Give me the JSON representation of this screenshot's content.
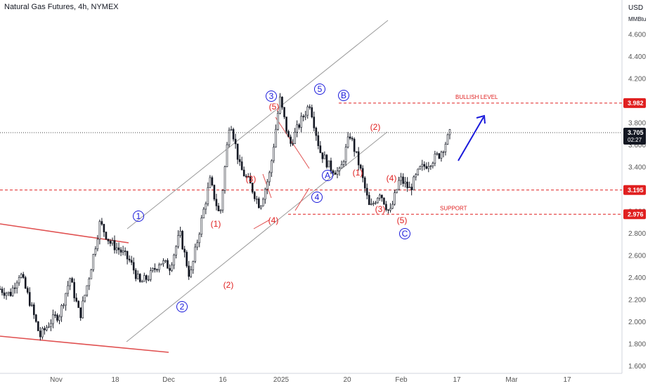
{
  "header": {
    "title": "Natural Gas Futures, 4h, NYMEX"
  },
  "axis": {
    "currency": "USD",
    "unit": "MMBtu"
  },
  "chart_data": {
    "type": "candlestick",
    "symbol": "Natural Gas Futures",
    "interval": "4h",
    "exchange": "NYMEX",
    "ylim": [
      1.55,
      4.95
    ],
    "y_ticks": [
      "4.600",
      "4.400",
      "4.200",
      "4.000",
      "3.800",
      "3.600",
      "3.400",
      "3.200",
      "3.000",
      "2.800",
      "2.600",
      "2.400",
      "2.200",
      "2.000",
      "1.800",
      "1.600"
    ],
    "x_ticks": [
      "Nov",
      "18",
      "Dec",
      "16",
      "2025",
      "20",
      "Feb",
      "17",
      "Mar",
      "17"
    ],
    "price_path": [
      [
        "Oct 25",
        2.3
      ],
      [
        "Oct 28",
        2.25
      ],
      [
        "Oct 31",
        2.45
      ],
      [
        "Nov 3",
        2.18
      ],
      [
        "Nov 6",
        1.87
      ],
      [
        "Nov 9",
        2.0
      ],
      [
        "Nov 12",
        2.08
      ],
      [
        "Nov 15",
        2.4
      ],
      [
        "Nov 18",
        2.05
      ],
      [
        "Nov 21",
        2.45
      ],
      [
        "Nov 24",
        2.9
      ],
      [
        "Nov 27",
        2.72
      ],
      [
        "Nov 30",
        2.65
      ],
      [
        "Dec 3",
        2.55
      ],
      [
        "Dec 6",
        2.35
      ],
      [
        "Dec 9",
        2.42
      ],
      [
        "Dec 12",
        2.55
      ],
      [
        "Dec 15",
        2.5
      ],
      [
        "Dec 18",
        2.8
      ],
      [
        "Dec 21",
        2.4
      ],
      [
        "Dec 24",
        2.85
      ],
      [
        "Dec 27",
        3.28
      ],
      [
        "Dec 30",
        2.95
      ],
      [
        "Jan 2",
        3.85
      ],
      [
        "Jan 5",
        3.4
      ],
      [
        "Jan 8",
        3.25
      ],
      [
        "Jan 11",
        3.05
      ],
      [
        "Jan 14",
        3.35
      ],
      [
        "Jan 16",
        4.02
      ],
      [
        "Jan 17",
        3.6
      ],
      [
        "Jan 19",
        3.8
      ],
      [
        "Jan 20",
        3.98
      ],
      [
        "Jan 22",
        3.55
      ],
      [
        "Jan 25",
        3.4
      ],
      [
        "Jan 27",
        3.35
      ],
      [
        "Jan 29",
        3.7
      ],
      [
        "Feb 1",
        3.4
      ],
      [
        "Feb 3",
        3.02
      ],
      [
        "Feb 5",
        3.18
      ],
      [
        "Feb 7",
        2.98
      ],
      [
        "Feb 9",
        3.3
      ],
      [
        "Feb 12",
        3.2
      ],
      [
        "Feb 15",
        3.38
      ],
      [
        "Feb 18",
        3.45
      ],
      [
        "Feb 21",
        3.52
      ],
      [
        "Feb 23",
        3.7
      ]
    ],
    "price_lines": [
      {
        "label": "BULLISH LEVEL",
        "value": 3.982,
        "tag": "3.982"
      },
      {
        "label": "",
        "value": 3.195,
        "tag": "3.195"
      },
      {
        "label": "SUPPORT",
        "value": 2.976,
        "tag": "2.976"
      }
    ],
    "current_price": {
      "value": 3.705,
      "tag": "3.705",
      "countdown": "02:27"
    },
    "wave_labels_blue": [
      "1",
      "2",
      "3",
      "4",
      "5",
      "A",
      "B",
      "C"
    ],
    "wave_labels_red": [
      "(1)",
      "(2)",
      "(3)",
      "(4)",
      "(5)",
      "(2)",
      "(1)",
      "(2)",
      "(3)",
      "(4)",
      "(5)"
    ],
    "colors": {
      "up": "#131722",
      "bullish_arrow": "#1a1adb",
      "levels": "#e02020",
      "channel": "#999999"
    }
  }
}
